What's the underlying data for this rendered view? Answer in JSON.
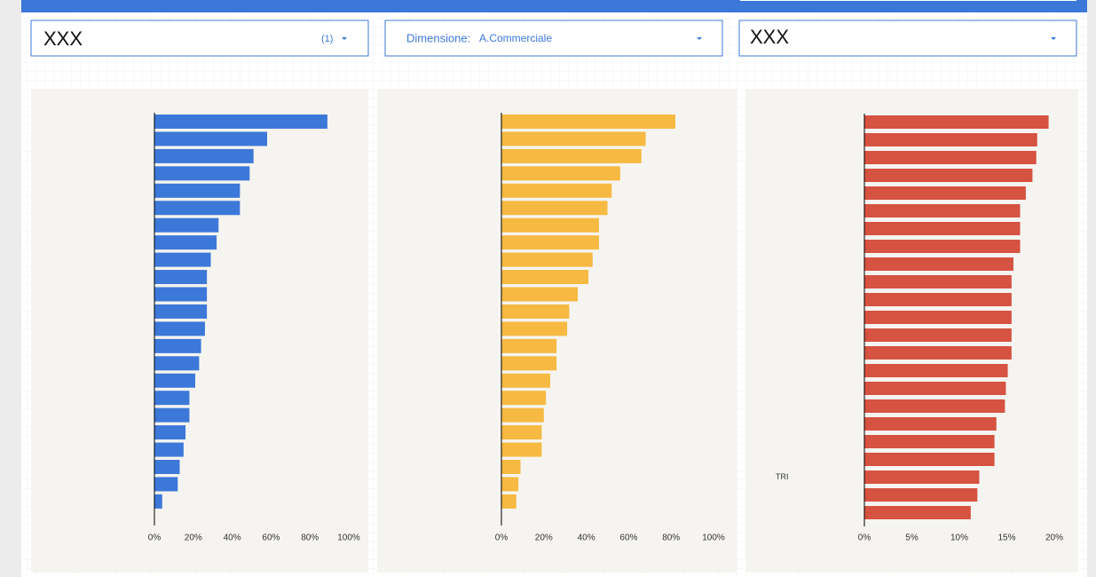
{
  "filters": [
    {
      "label": "XXX",
      "count": "(1)"
    },
    {
      "label": "Dimensione:",
      "value": "A.Commerciale"
    },
    {
      "label": "XXX"
    }
  ],
  "chart_data": [
    {
      "type": "bar",
      "orientation": "horizontal",
      "color": "#3c78d8",
      "categories": [
        null,
        null,
        null,
        null,
        null,
        null,
        null,
        null,
        null,
        null,
        null,
        null,
        null,
        null,
        null,
        null,
        null,
        null,
        null,
        null,
        null,
        null,
        null
      ],
      "values": [
        89,
        58,
        51,
        49,
        44,
        44,
        33,
        32,
        29,
        27,
        27,
        27,
        26,
        24,
        23,
        21,
        18,
        18,
        16,
        15,
        13,
        12,
        4
      ],
      "xlim": [
        0,
        100
      ],
      "xticks": [
        {
          "value": 0,
          "label": "0%"
        },
        {
          "value": 20,
          "label": "20%"
        },
        {
          "value": 40,
          "label": "40%"
        },
        {
          "value": 60,
          "label": "60%"
        },
        {
          "value": 80,
          "label": "80%"
        },
        {
          "value": 100,
          "label": "100%"
        }
      ]
    },
    {
      "type": "bar",
      "orientation": "horizontal",
      "color": "#f6b942",
      "categories": [
        null,
        null,
        null,
        null,
        null,
        null,
        null,
        null,
        null,
        null,
        null,
        null,
        null,
        null,
        null,
        null,
        null,
        null,
        null,
        null,
        null,
        null,
        null
      ],
      "values": [
        82,
        68,
        66,
        56,
        52,
        50,
        46,
        46,
        43,
        41,
        36,
        32,
        31,
        26,
        26,
        23,
        21,
        20,
        19,
        19,
        9,
        8,
        7
      ],
      "xlim": [
        0,
        100
      ],
      "xticks": [
        {
          "value": 0,
          "label": "0%"
        },
        {
          "value": 20,
          "label": "20%"
        },
        {
          "value": 40,
          "label": "40%"
        },
        {
          "value": 60,
          "label": "60%"
        },
        {
          "value": 80,
          "label": "80%"
        },
        {
          "value": 100,
          "label": "100%"
        }
      ]
    },
    {
      "type": "bar",
      "orientation": "horizontal",
      "color": "#d65241",
      "categories": [
        null,
        null,
        null,
        null,
        null,
        null,
        null,
        null,
        null,
        null,
        null,
        null,
        null,
        null,
        null,
        null,
        null,
        null,
        null,
        null,
        "TRI",
        null,
        null
      ],
      "values": [
        19.4,
        18.2,
        18.1,
        17.7,
        17.0,
        16.4,
        16.4,
        16.4,
        15.7,
        15.5,
        15.5,
        15.5,
        15.5,
        15.5,
        15.1,
        14.9,
        14.8,
        13.9,
        13.7,
        13.7,
        12.1,
        11.9,
        11.2
      ],
      "xlim": [
        0,
        20
      ],
      "xticks": [
        {
          "value": 0,
          "label": "0%"
        },
        {
          "value": 5,
          "label": "5%"
        },
        {
          "value": 10,
          "label": "10%"
        },
        {
          "value": 15,
          "label": "15%"
        },
        {
          "value": 20,
          "label": "20%"
        }
      ]
    }
  ]
}
